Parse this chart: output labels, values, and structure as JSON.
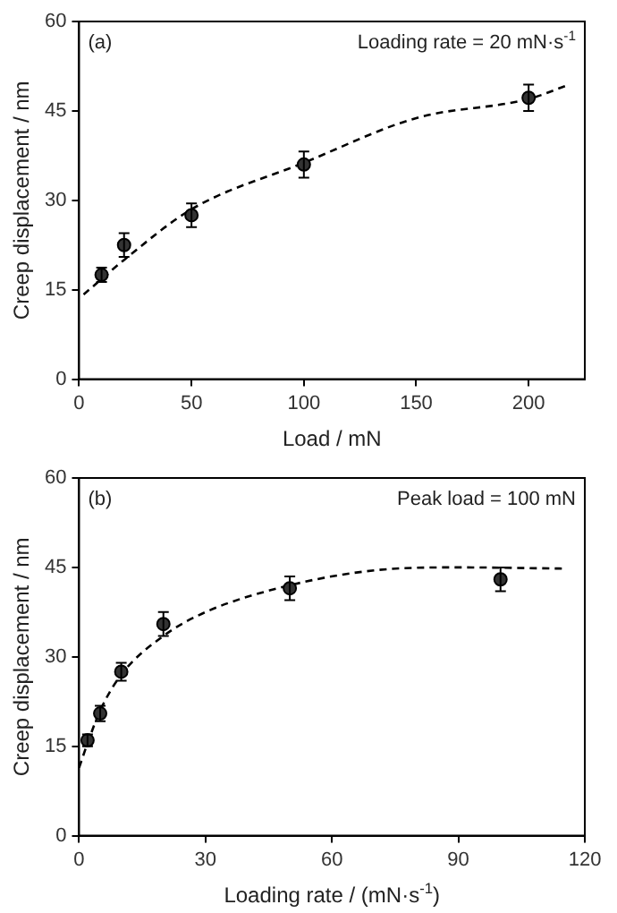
{
  "chart_data": [
    {
      "type": "scatter",
      "xlabel": "Load / mN",
      "ylabel": "Creep displacement / nm",
      "xlim": [
        0,
        225
      ],
      "xticks": [
        0,
        50,
        100,
        150,
        200
      ],
      "ylim": [
        0,
        60
      ],
      "yticks": [
        0,
        15,
        30,
        45,
        60
      ],
      "grid": false,
      "legend": false,
      "marker": "circle",
      "annotations": [
        "(a)",
        "Loading rate = 20 mN·s$^{-1}$"
      ],
      "series": [
        {
          "color": "#333333",
          "x": [
            10,
            20,
            50,
            100,
            200
          ],
          "values": [
            17.5,
            22.5,
            27.5,
            36,
            47.2
          ],
          "errors": [
            1.2,
            2,
            2,
            2.2,
            2.2
          ]
        },
        {
          "type": "line",
          "color": "#000000",
          "line_style": "dashed",
          "marker": "none",
          "x": [
            2,
            20,
            50,
            100,
            150,
            200,
            218
          ],
          "values": [
            14.2,
            20,
            28.5,
            36.3,
            43.8,
            47,
            49.4
          ]
        }
      ]
    },
    {
      "type": "scatter",
      "xlabel": "Loading rate / (mN·s$^{-1}$)",
      "ylabel": "Creep displacement / nm",
      "xlim": [
        0,
        120
      ],
      "xticks": [
        0,
        30,
        60,
        90,
        120
      ],
      "ylim": [
        0,
        60
      ],
      "yticks": [
        0,
        15,
        30,
        45,
        60
      ],
      "grid": false,
      "legend": false,
      "marker": "circle",
      "annotations": [
        "(b)",
        "Peak load = 100 mN"
      ],
      "series": [
        {
          "color": "#333333",
          "x": [
            2,
            5,
            10,
            20,
            50,
            100
          ],
          "values": [
            16,
            20.5,
            27.5,
            35.5,
            41.5,
            43
          ],
          "errors": [
            1,
            1.3,
            1.5,
            2,
            2,
            2
          ]
        },
        {
          "type": "line",
          "color": "#000000",
          "line_style": "dashed",
          "marker": "none",
          "x": [
            0,
            2,
            5,
            10,
            20,
            30,
            50,
            70,
            90,
            115
          ],
          "values": [
            11.4,
            15.5,
            21,
            27,
            33.5,
            37.5,
            42,
            44.5,
            45,
            44.8
          ]
        }
      ]
    }
  ]
}
